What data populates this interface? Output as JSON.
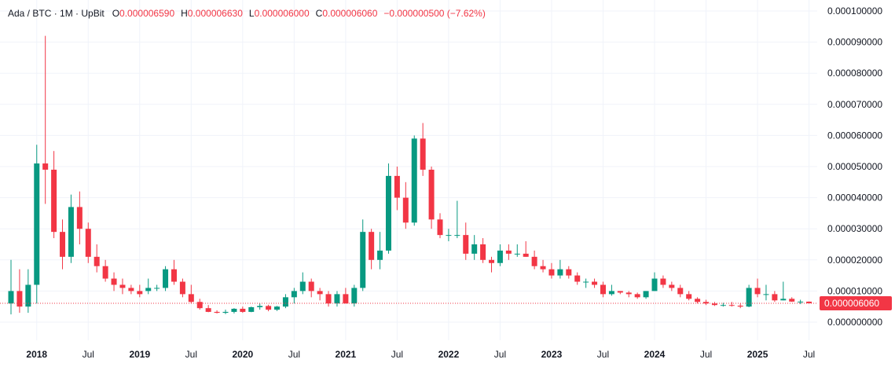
{
  "legend": {
    "symbol": "Ada / BTC · 1M · UpBit",
    "open_key": "O",
    "open": "0.000006590",
    "high_key": "H",
    "high": "0.000006630",
    "low_key": "L",
    "low": "0.000006000",
    "close_key": "C",
    "close": "0.000006060",
    "change": "−0.000000500 (−7.62%)"
  },
  "colors": {
    "up": "#089981",
    "down": "#f23645",
    "grid": "#f0f3fa",
    "text": "#131722",
    "price_tag": "#f23645"
  },
  "last_price_label": "0.000006060",
  "chart_data": {
    "type": "candlestick",
    "title": "",
    "xlabel": "",
    "ylabel": "",
    "ylim": [
      -4e-07,
      1.01e-05
    ],
    "y_ticks": [
      {
        "value": 0.0,
        "label": "0.000000000"
      },
      {
        "value": 1e-06,
        "label": "0.000010000"
      },
      {
        "value": 2e-06,
        "label": "0.000020000"
      },
      {
        "value": 3e-06,
        "label": "0.000030000"
      },
      {
        "value": 4e-06,
        "label": "0.000040000"
      },
      {
        "value": 5e-06,
        "label": "0.000050000"
      },
      {
        "value": 6e-06,
        "label": "0.000060000"
      },
      {
        "value": 7e-06,
        "label": "0.000070000"
      },
      {
        "value": 8e-06,
        "label": "0.000080000"
      },
      {
        "value": 9e-06,
        "label": "0.000090000"
      },
      {
        "value": 1e-05,
        "label": "0.000100000"
      }
    ],
    "y_tick_format_note": "",
    "x_ticks": [
      {
        "index": 3,
        "label": "2018",
        "bold": true
      },
      {
        "index": 9,
        "label": "Jul",
        "bold": false
      },
      {
        "index": 15,
        "label": "2019",
        "bold": true
      },
      {
        "index": 21,
        "label": "Jul",
        "bold": false
      },
      {
        "index": 27,
        "label": "2020",
        "bold": true
      },
      {
        "index": 33,
        "label": "Jul",
        "bold": false
      },
      {
        "index": 39,
        "label": "2021",
        "bold": true
      },
      {
        "index": 45,
        "label": "Jul",
        "bold": false
      },
      {
        "index": 51,
        "label": "2022",
        "bold": true
      },
      {
        "index": 57,
        "label": "Jul",
        "bold": false
      },
      {
        "index": 63,
        "label": "2023",
        "bold": true
      },
      {
        "index": 69,
        "label": "Jul",
        "bold": false
      },
      {
        "index": 75,
        "label": "2024",
        "bold": true
      },
      {
        "index": 81,
        "label": "Jul",
        "bold": false
      },
      {
        "index": 87,
        "label": "2025",
        "bold": true
      },
      {
        "index": 93,
        "label": "Jul",
        "bold": false
      }
    ],
    "ohlc": [
      [
        6e-07,
        2e-06,
        2.5e-07,
        1e-06
      ],
      [
        1e-06,
        1.7e-06,
        3e-07,
        5e-07
      ],
      [
        5e-07,
        1.7e-06,
        3e-07,
        1.2e-06
      ],
      [
        1.2e-06,
        5.7e-06,
        6e-07,
        5.1e-06
      ],
      [
        5.1e-06,
        9.2e-06,
        3.8e-06,
        4.9e-06
      ],
      [
        4.9e-06,
        5.5e-06,
        2.7e-06,
        2.9e-06
      ],
      [
        2.9e-06,
        3.3e-06,
        1.7e-06,
        2.1e-06
      ],
      [
        2.1e-06,
        4.1e-06,
        1.9e-06,
        3.7e-06
      ],
      [
        3.7e-06,
        4.2e-06,
        2.5e-06,
        3e-06
      ],
      [
        3e-06,
        3.2e-06,
        1.9e-06,
        2.1e-06
      ],
      [
        2.1e-06,
        2.5e-06,
        1.6e-06,
        1.8e-06
      ],
      [
        1.8e-06,
        2e-06,
        1.3e-06,
        1.4e-06
      ],
      [
        1.4e-06,
        1.6e-06,
        1e-06,
        1.2e-06
      ],
      [
        1.2e-06,
        1.4e-06,
        9e-07,
        1.1e-06
      ],
      [
        1.1e-06,
        1.2e-06,
        9e-07,
        1e-06
      ],
      [
        1e-06,
        1.2e-06,
        8e-07,
        9e-07
      ],
      [
        1e-06,
        1.4e-06,
        9e-07,
        1.1e-06
      ],
      [
        1.1e-06,
        1.2e-06,
        1e-06,
        1.1e-06
      ],
      [
        1.1e-06,
        1.8e-06,
        1e-06,
        1.7e-06
      ],
      [
        1.7e-06,
        2e-06,
        1.2e-06,
        1.3e-06
      ],
      [
        1.3e-06,
        1.4e-06,
        8e-07,
        9e-07
      ],
      [
        9e-07,
        1.2e-06,
        6e-07,
        6.5e-07
      ],
      [
        6.5e-07,
        7.5e-07,
        4e-07,
        4.5e-07
      ],
      [
        4.5e-07,
        5.5e-07,
        3.2e-07,
        3.3e-07
      ],
      [
        3.3e-07,
        3.8e-07,
        2.8e-07,
        3e-07
      ],
      [
        3e-07,
        4e-07,
        2.6e-07,
        3.3e-07
      ],
      [
        3.3e-07,
        4.5e-07,
        2.8e-07,
        4.3e-07
      ],
      [
        4.3e-07,
        5e-07,
        3e-07,
        3.3e-07
      ],
      [
        3.3e-07,
        5e-07,
        3.2e-07,
        4.8e-07
      ],
      [
        4.8e-07,
        6e-07,
        4e-07,
        5.2e-07
      ],
      [
        5.2e-07,
        5.6e-07,
        3.5e-07,
        4e-07
      ],
      [
        4e-07,
        5.2e-07,
        3.6e-07,
        5e-07
      ],
      [
        5e-07,
        9e-07,
        4.5e-07,
        8e-07
      ],
      [
        8e-07,
        1.1e-06,
        6e-07,
        1e-06
      ],
      [
        1e-06,
        1.6e-06,
        9e-07,
        1.3e-06
      ],
      [
        1.3e-06,
        1.4e-06,
        8e-07,
        1e-06
      ],
      [
        1e-06,
        1.1e-06,
        7e-07,
        9e-07
      ],
      [
        9e-07,
        1e-06,
        5e-07,
        6e-07
      ],
      [
        6e-07,
        1e-06,
        5e-07,
        9e-07
      ],
      [
        9e-07,
        1.1e-06,
        6e-07,
        6e-07
      ],
      [
        6e-07,
        1.2e-06,
        5e-07,
        1.1e-06
      ],
      [
        1.1e-06,
        3.3e-06,
        1e-06,
        2.9e-06
      ],
      [
        2.9e-06,
        3e-06,
        1.7e-06,
        2e-06
      ],
      [
        2e-06,
        2.9e-06,
        1.7e-06,
        2.3e-06
      ],
      [
        2.3e-06,
        5.1e-06,
        2.2e-06,
        4.7e-06
      ],
      [
        4.7e-06,
        5e-06,
        3.6e-06,
        4e-06
      ],
      [
        4e-06,
        4.5e-06,
        3e-06,
        3.2e-06
      ],
      [
        3.2e-06,
        6e-06,
        3.1e-06,
        5.9e-06
      ],
      [
        5.9e-06,
        6.4e-06,
        4.7e-06,
        4.9e-06
      ],
      [
        4.9e-06,
        5e-06,
        3e-06,
        3.3e-06
      ],
      [
        3.3e-06,
        3.5e-06,
        2.7e-06,
        2.8e-06
      ],
      [
        2.8e-06,
        3e-06,
        2.6e-06,
        2.8e-06
      ],
      [
        2.8e-06,
        3.9e-06,
        2.7e-06,
        2.8e-06
      ],
      [
        2.8e-06,
        3.2e-06,
        2e-06,
        2.2e-06
      ],
      [
        2.2e-06,
        2.8e-06,
        2e-06,
        2.5e-06
      ],
      [
        2.5e-06,
        2.7e-06,
        1.9e-06,
        2e-06
      ],
      [
        2e-06,
        2.1e-06,
        1.6e-06,
        1.9e-06
      ],
      [
        1.9e-06,
        2.5e-06,
        1.8e-06,
        2.3e-06
      ],
      [
        2.3e-06,
        2.5e-06,
        2e-06,
        2.2e-06
      ],
      [
        2.2e-06,
        2.5e-06,
        2.1e-06,
        2.2e-06
      ],
      [
        2.2e-06,
        2.6e-06,
        2.1e-06,
        2.1e-06
      ],
      [
        2.1e-06,
        2.3e-06,
        1.7e-06,
        1.8e-06
      ],
      [
        1.8e-06,
        2e-06,
        1.6e-06,
        1.7e-06
      ],
      [
        1.7e-06,
        1.9e-06,
        1.4e-06,
        1.5e-06
      ],
      [
        1.5e-06,
        2e-06,
        1.4e-06,
        1.7e-06
      ],
      [
        1.7e-06,
        1.8e-06,
        1.4e-06,
        1.5e-06
      ],
      [
        1.5e-06,
        1.6e-06,
        1.2e-06,
        1.3e-06
      ],
      [
        1.3e-06,
        1.4e-06,
        1.1e-06,
        1.3e-06
      ],
      [
        1.3e-06,
        1.4e-06,
        1.1e-06,
        1.2e-06
      ],
      [
        1.2e-06,
        1.3e-06,
        8e-07,
        9e-07
      ],
      [
        9e-07,
        1.2e-06,
        8.5e-07,
        1e-06
      ],
      [
        1e-06,
        1e-06,
        9e-07,
        9.5e-07
      ],
      [
        9.5e-07,
        1e-06,
        8e-07,
        9e-07
      ],
      [
        9e-07,
        9.5e-07,
        7.5e-07,
        8e-07
      ],
      [
        8e-07,
        1e-06,
        7.5e-07,
        1e-06
      ],
      [
        1e-06,
        1.6e-06,
        1e-06,
        1.4e-06
      ],
      [
        1.4e-06,
        1.5e-06,
        1.1e-06,
        1.2e-06
      ],
      [
        1.2e-06,
        1.3e-06,
        1e-06,
        1.1e-06
      ],
      [
        1.1e-06,
        1.2e-06,
        8e-07,
        9e-07
      ],
      [
        9e-07,
        1e-06,
        7e-07,
        7.5e-07
      ],
      [
        7.5e-07,
        8e-07,
        6e-07,
        6.5e-07
      ],
      [
        6.5e-07,
        7.2e-07,
        5.5e-07,
        6e-07
      ],
      [
        6e-07,
        6.5e-07,
        5.2e-07,
        5.5e-07
      ],
      [
        5.5e-07,
        6.2e-07,
        5e-07,
        5.5e-07
      ],
      [
        5.5e-07,
        6.5e-07,
        5e-07,
        5.3e-07
      ],
      [
        5.3e-07,
        6e-07,
        4.5e-07,
        5e-07
      ],
      [
        5e-07,
        1.2e-06,
        4.8e-07,
        1.1e-06
      ],
      [
        1.1e-06,
        1.4e-06,
        8e-07,
        9e-07
      ],
      [
        9e-07,
        1.2e-06,
        7e-07,
        9e-07
      ],
      [
        9e-07,
        1e-06,
        6.5e-07,
        7e-07
      ],
      [
        7e-07,
        1.3e-06,
        7e-07,
        7.5e-07
      ],
      [
        7.5e-07,
        8e-07,
        6.5e-07,
        6.6e-07
      ],
      [
        6.6e-07,
        7.2e-07,
        5.8e-07,
        6.6e-07
      ],
      [
        6.59e-07,
        6.63e-07,
        6e-07,
        6.06e-07
      ]
    ]
  }
}
